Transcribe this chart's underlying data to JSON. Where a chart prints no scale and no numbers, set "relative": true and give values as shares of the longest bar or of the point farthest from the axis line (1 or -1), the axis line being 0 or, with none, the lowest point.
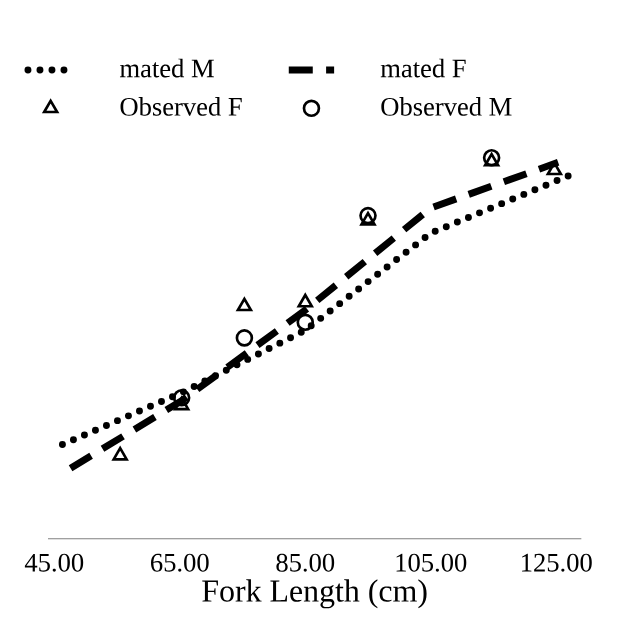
{
  "chart_data": {
    "type": "scatter",
    "relative": true,
    "xlabel": "Fork Length (cm)",
    "xlim": [
      44,
      129
    ],
    "xticks": [
      {
        "value": 45,
        "label": "45.00"
      },
      {
        "value": 65,
        "label": "65.00"
      },
      {
        "value": 85,
        "label": "85.00"
      },
      {
        "value": 105,
        "label": "105.00"
      },
      {
        "value": 125,
        "label": "125.00"
      }
    ],
    "grid": false,
    "legend": "top left",
    "series": [
      {
        "name": "mated M",
        "type": "line",
        "line_style": "dotted",
        "marker": "none",
        "color": "#000000",
        "x": [
          46.3,
          65.3,
          85,
          105,
          127.9
        ],
        "values": [
          0.247,
          0.383,
          0.547,
          0.802,
          0.959
        ]
      },
      {
        "name": "mated F",
        "type": "line",
        "line_style": "dashed",
        "marker": "none",
        "color": "#000000",
        "x": [
          47.6,
          65.3,
          85,
          105,
          125.3
        ],
        "values": [
          0.185,
          0.362,
          0.6,
          0.868,
          0.988
        ]
      },
      {
        "name": "Observed F",
        "marker": "triangle",
        "color": "#000000",
        "x": [
          55.5,
          65.3,
          75.3,
          85,
          95,
          114.7,
          124.7
        ],
        "values": [
          0.218,
          0.35,
          0.61,
          0.62,
          0.835,
          0.99,
          0.967
        ]
      },
      {
        "name": "Observed M",
        "marker": "circle",
        "color": "#000000",
        "x": [
          65.3,
          75.3,
          85,
          95,
          114.7
        ],
        "values": [
          0.37,
          0.527,
          0.568,
          0.848,
          1.0
        ]
      }
    ]
  }
}
